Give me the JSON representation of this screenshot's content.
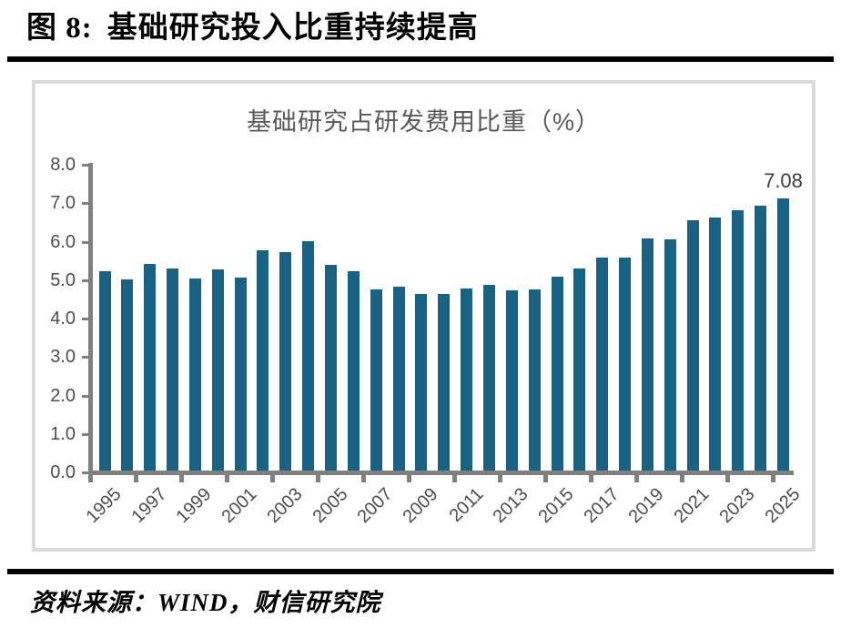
{
  "page": {
    "figure_label": "图 8:",
    "figure_title": "基础研究投入比重持续提高",
    "source_line": "资料来源：WIND，财信研究院"
  },
  "chart_data": {
    "type": "bar",
    "title": "基础研究占研发费用比重（%）",
    "categories": [
      "1995",
      "1996",
      "1997",
      "1998",
      "1999",
      "2000",
      "2001",
      "2002",
      "2003",
      "2004",
      "2005",
      "2006",
      "2007",
      "2008",
      "2009",
      "2010",
      "2011",
      "2012",
      "2013",
      "2014",
      "2015",
      "2016",
      "2017",
      "2018",
      "2019",
      "2020",
      "2021",
      "2022",
      "2023",
      "2024",
      "2025"
    ],
    "values": [
      5.18,
      4.98,
      5.37,
      5.25,
      4.99,
      5.22,
      5.02,
      5.72,
      5.69,
      5.96,
      5.36,
      5.19,
      4.7,
      4.78,
      4.58,
      4.59,
      4.74,
      4.84,
      4.68,
      4.71,
      5.05,
      5.25,
      5.54,
      5.54,
      6.03,
      6.01,
      6.5,
      6.57,
      6.77,
      6.89,
      7.08
    ],
    "x_tick_labels": [
      "1995",
      "1997",
      "1999",
      "2001",
      "2003",
      "2005",
      "2007",
      "2009",
      "2011",
      "2013",
      "2015",
      "2017",
      "2019",
      "2021",
      "2023",
      "2025"
    ],
    "y_tick_labels": [
      "0.0",
      "1.0",
      "2.0",
      "3.0",
      "4.0",
      "5.0",
      "6.0",
      "7.0",
      "8.0"
    ],
    "ylim": [
      0,
      8
    ],
    "annotation": {
      "text": "7.08",
      "at_category": "2025"
    },
    "grid": false,
    "legend": "none",
    "colors": {
      "bar": "#1A6284",
      "axis": "#808080",
      "tick_label": "#4D4D4D",
      "chart_title": "#595959",
      "annotation": "#3D3D3D",
      "panel_border": "#DADADA"
    }
  }
}
